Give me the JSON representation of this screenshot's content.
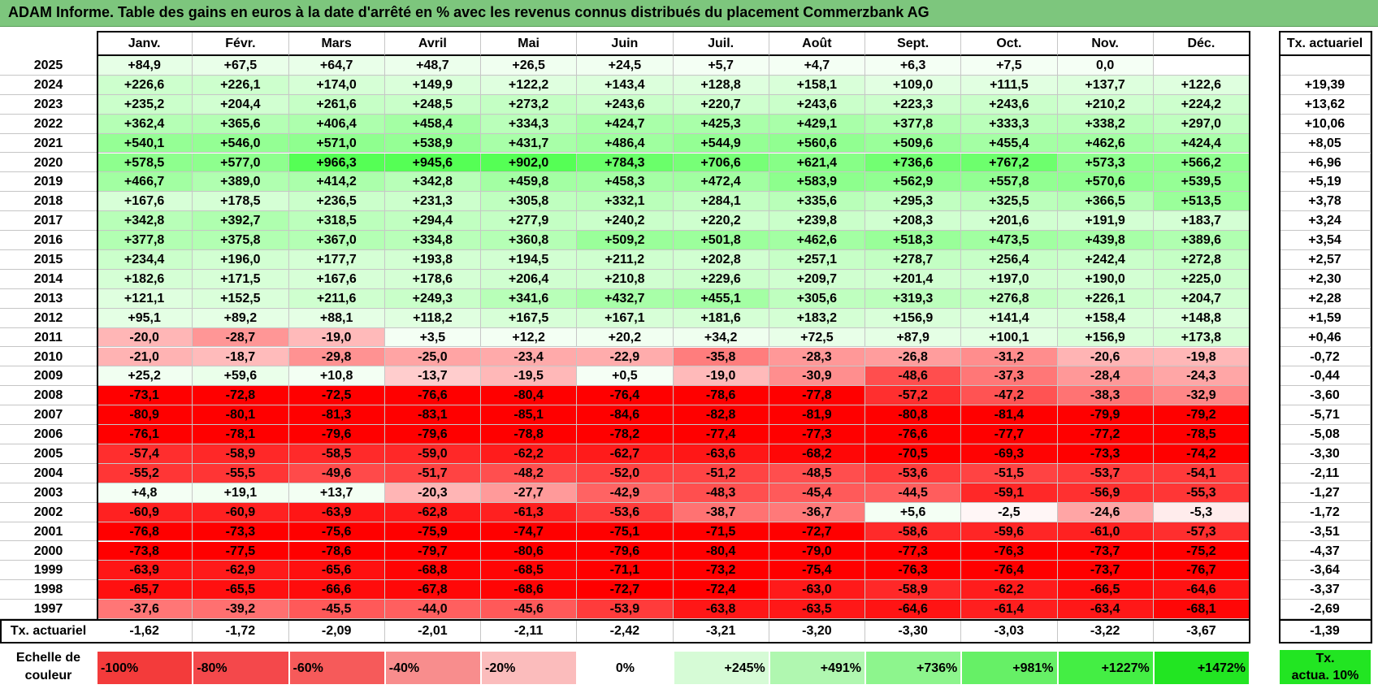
{
  "title": "ADAM Informe. Table des gains en euros à la date d'arrêté en % avec les revenus connus distribués du placement Commerzbank AG",
  "months": [
    "Janv.",
    "Févr.",
    "Mars",
    "Avril",
    "Mai",
    "Juin",
    "Juil.",
    "Août",
    "Sept.",
    "Oct.",
    "Nov.",
    "Déc."
  ],
  "annual_header": "Tx. actuariel",
  "rows": [
    {
      "year": "2025",
      "cells": [
        "+84,9",
        "+67,5",
        "+64,7",
        "+48,7",
        "+26,5",
        "+24,5",
        "+5,7",
        "+4,7",
        "+6,3",
        "+7,5",
        "0,0",
        ""
      ],
      "annual": ""
    },
    {
      "year": "2024",
      "cells": [
        "+226,6",
        "+226,1",
        "+174,0",
        "+149,9",
        "+122,2",
        "+143,4",
        "+128,8",
        "+158,1",
        "+109,0",
        "+111,5",
        "+137,7",
        "+122,6"
      ],
      "annual": "+19,39"
    },
    {
      "year": "2023",
      "cells": [
        "+235,2",
        "+204,4",
        "+261,6",
        "+248,5",
        "+273,2",
        "+243,6",
        "+220,7",
        "+243,6",
        "+223,3",
        "+243,6",
        "+210,2",
        "+224,2"
      ],
      "annual": "+13,62"
    },
    {
      "year": "2022",
      "cells": [
        "+362,4",
        "+365,6",
        "+406,4",
        "+458,4",
        "+334,3",
        "+424,7",
        "+425,3",
        "+429,1",
        "+377,8",
        "+333,3",
        "+338,2",
        "+297,0"
      ],
      "annual": "+10,06"
    },
    {
      "year": "2021",
      "cells": [
        "+540,1",
        "+546,0",
        "+571,0",
        "+538,9",
        "+431,7",
        "+486,4",
        "+544,9",
        "+560,6",
        "+509,6",
        "+455,4",
        "+462,6",
        "+424,4"
      ],
      "annual": "+8,05"
    },
    {
      "year": "2020",
      "cells": [
        "+578,5",
        "+577,0",
        "+966,3",
        "+945,6",
        "+902,0",
        "+784,3",
        "+706,6",
        "+621,4",
        "+736,6",
        "+767,2",
        "+573,3",
        "+566,2"
      ],
      "annual": "+6,96"
    },
    {
      "year": "2019",
      "cells": [
        "+466,7",
        "+389,0",
        "+414,2",
        "+342,8",
        "+459,8",
        "+458,3",
        "+472,4",
        "+583,9",
        "+562,9",
        "+557,8",
        "+570,6",
        "+539,5"
      ],
      "annual": "+5,19"
    },
    {
      "year": "2018",
      "cells": [
        "+167,6",
        "+178,5",
        "+236,5",
        "+231,3",
        "+305,8",
        "+332,1",
        "+284,1",
        "+335,6",
        "+295,3",
        "+325,5",
        "+366,5",
        "+513,5"
      ],
      "annual": "+3,78"
    },
    {
      "year": "2017",
      "cells": [
        "+342,8",
        "+392,7",
        "+318,5",
        "+294,4",
        "+277,9",
        "+240,2",
        "+220,2",
        "+239,8",
        "+208,3",
        "+201,6",
        "+191,9",
        "+183,7"
      ],
      "annual": "+3,24"
    },
    {
      "year": "2016",
      "cells": [
        "+377,8",
        "+375,8",
        "+367,0",
        "+334,8",
        "+360,8",
        "+509,2",
        "+501,8",
        "+462,6",
        "+518,3",
        "+473,5",
        "+439,8",
        "+389,6"
      ],
      "annual": "+3,54"
    },
    {
      "year": "2015",
      "cells": [
        "+234,4",
        "+196,0",
        "+177,7",
        "+193,8",
        "+194,5",
        "+211,2",
        "+202,8",
        "+257,1",
        "+278,7",
        "+256,4",
        "+242,4",
        "+272,8"
      ],
      "annual": "+2,57"
    },
    {
      "year": "2014",
      "cells": [
        "+182,6",
        "+171,5",
        "+167,6",
        "+178,6",
        "+206,4",
        "+210,8",
        "+229,6",
        "+209,7",
        "+201,4",
        "+197,0",
        "+190,0",
        "+225,0"
      ],
      "annual": "+2,30"
    },
    {
      "year": "2013",
      "cells": [
        "+121,1",
        "+152,5",
        "+211,6",
        "+249,3",
        "+341,6",
        "+432,7",
        "+455,1",
        "+305,6",
        "+319,3",
        "+276,8",
        "+226,1",
        "+204,7"
      ],
      "annual": "+2,28"
    },
    {
      "year": "2012",
      "cells": [
        "+95,1",
        "+89,2",
        "+88,1",
        "+118,2",
        "+167,5",
        "+167,1",
        "+181,6",
        "+183,2",
        "+156,9",
        "+141,4",
        "+158,4",
        "+148,8"
      ],
      "annual": "+1,59"
    },
    {
      "year": "2011",
      "cells": [
        "-20,0",
        "-28,7",
        "-19,0",
        "+3,5",
        "+12,2",
        "+20,2",
        "+34,2",
        "+72,5",
        "+87,9",
        "+100,1",
        "+156,9",
        "+173,8"
      ],
      "annual": "+0,46"
    },
    {
      "year": "2010",
      "cells": [
        "-21,0",
        "-18,7",
        "-29,8",
        "-25,0",
        "-23,4",
        "-22,9",
        "-35,8",
        "-28,3",
        "-26,8",
        "-31,2",
        "-20,6",
        "-19,8"
      ],
      "annual": "-0,72"
    },
    {
      "year": "2009",
      "cells": [
        "+25,2",
        "+59,6",
        "+10,8",
        "-13,7",
        "-19,5",
        "+0,5",
        "-19,0",
        "-30,9",
        "-48,6",
        "-37,3",
        "-28,4",
        "-24,3"
      ],
      "annual": "-0,44"
    },
    {
      "year": "2008",
      "cells": [
        "-73,1",
        "-72,8",
        "-72,5",
        "-76,6",
        "-80,4",
        "-76,4",
        "-78,6",
        "-77,8",
        "-57,2",
        "-47,2",
        "-38,3",
        "-32,9"
      ],
      "annual": "-3,60"
    },
    {
      "year": "2007",
      "cells": [
        "-80,9",
        "-80,1",
        "-81,3",
        "-83,1",
        "-85,1",
        "-84,6",
        "-82,8",
        "-81,9",
        "-80,8",
        "-81,4",
        "-79,9",
        "-79,2"
      ],
      "annual": "-5,71"
    },
    {
      "year": "2006",
      "cells": [
        "-76,1",
        "-78,1",
        "-79,6",
        "-79,6",
        "-78,8",
        "-78,2",
        "-77,4",
        "-77,3",
        "-76,6",
        "-77,7",
        "-77,2",
        "-78,5"
      ],
      "annual": "-5,08"
    },
    {
      "year": "2005",
      "cells": [
        "-57,4",
        "-58,9",
        "-58,5",
        "-59,0",
        "-62,2",
        "-62,7",
        "-63,6",
        "-68,2",
        "-70,5",
        "-69,3",
        "-73,3",
        "-74,2"
      ],
      "annual": "-3,30"
    },
    {
      "year": "2004",
      "cells": [
        "-55,2",
        "-55,5",
        "-49,6",
        "-51,7",
        "-48,2",
        "-52,0",
        "-51,2",
        "-48,5",
        "-53,6",
        "-51,5",
        "-53,7",
        "-54,1"
      ],
      "annual": "-2,11"
    },
    {
      "year": "2003",
      "cells": [
        "+4,8",
        "+19,1",
        "+13,7",
        "-20,3",
        "-27,7",
        "-42,9",
        "-48,3",
        "-45,4",
        "-44,5",
        "-59,1",
        "-56,9",
        "-55,3"
      ],
      "annual": "-1,27"
    },
    {
      "year": "2002",
      "cells": [
        "-60,9",
        "-60,9",
        "-63,9",
        "-62,8",
        "-61,3",
        "-53,6",
        "-38,7",
        "-36,7",
        "+5,6",
        "-2,5",
        "-24,6",
        "-5,3"
      ],
      "annual": "-1,72"
    },
    {
      "year": "2001",
      "cells": [
        "-76,8",
        "-73,3",
        "-75,6",
        "-75,9",
        "-74,7",
        "-75,1",
        "-71,5",
        "-72,7",
        "-58,6",
        "-59,6",
        "-61,0",
        "-57,3"
      ],
      "annual": "-3,51"
    },
    {
      "year": "2000",
      "cells": [
        "-73,8",
        "-77,5",
        "-78,6",
        "-79,7",
        "-80,6",
        "-79,6",
        "-80,4",
        "-79,0",
        "-77,3",
        "-76,3",
        "-73,7",
        "-75,2"
      ],
      "annual": "-4,37"
    },
    {
      "year": "1999",
      "cells": [
        "-63,9",
        "-62,9",
        "-65,6",
        "-68,8",
        "-68,5",
        "-71,1",
        "-73,2",
        "-75,4",
        "-76,3",
        "-76,4",
        "-73,7",
        "-76,7"
      ],
      "annual": "-3,64"
    },
    {
      "year": "1998",
      "cells": [
        "-65,7",
        "-65,5",
        "-66,6",
        "-67,8",
        "-68,6",
        "-72,7",
        "-72,4",
        "-63,0",
        "-58,9",
        "-62,2",
        "-66,5",
        "-64,6"
      ],
      "annual": "-3,37"
    },
    {
      "year": "1997",
      "cells": [
        "-37,6",
        "-39,2",
        "-45,5",
        "-44,0",
        "-45,6",
        "-53,9",
        "-63,8",
        "-63,5",
        "-64,6",
        "-61,4",
        "-63,4",
        "-68,1"
      ],
      "annual": "-2,69"
    }
  ],
  "footer": {
    "label": "Tx. actuariel",
    "cells": [
      "-1,62",
      "-1,72",
      "-2,09",
      "-2,01",
      "-2,11",
      "-2,42",
      "-3,21",
      "-3,20",
      "-3,30",
      "-3,03",
      "-3,22",
      "-3,67"
    ],
    "annual": "-1,39"
  },
  "legend": {
    "label_line1": "Echelle de",
    "label_line2": "couleur",
    "items": [
      {
        "text": "-100%",
        "color": "#f33b3b",
        "align": "left"
      },
      {
        "text": "-80%",
        "color": "#f4484b",
        "align": "left"
      },
      {
        "text": "-60%",
        "color": "#f65a5a",
        "align": "left"
      },
      {
        "text": "-40%",
        "color": "#f88d8d",
        "align": "left"
      },
      {
        "text": "-20%",
        "color": "#fbbcbc",
        "align": "left"
      },
      {
        "text": "0%",
        "color": "#ffffff",
        "align": "center"
      },
      {
        "text": "+245%",
        "color": "#d6fbd6",
        "align": "right"
      },
      {
        "text": "+491%",
        "color": "#b0f7b0",
        "align": "right"
      },
      {
        "text": "+736%",
        "color": "#8df58d",
        "align": "right"
      },
      {
        "text": "+981%",
        "color": "#66f066",
        "align": "right"
      },
      {
        "text": "+1227%",
        "color": "#44ee44",
        "align": "right"
      },
      {
        "text": "+1472%",
        "color": "#22e522",
        "align": "right"
      }
    ],
    "annual_line1": "Tx.",
    "annual_line2": "actua. 10%",
    "annual_color": "#22e522"
  },
  "colors": {
    "title_bg": "#7dc67d",
    "negative_max": "#ff0000",
    "positive_max": "#55ff55",
    "neutral": "#ffffff"
  }
}
